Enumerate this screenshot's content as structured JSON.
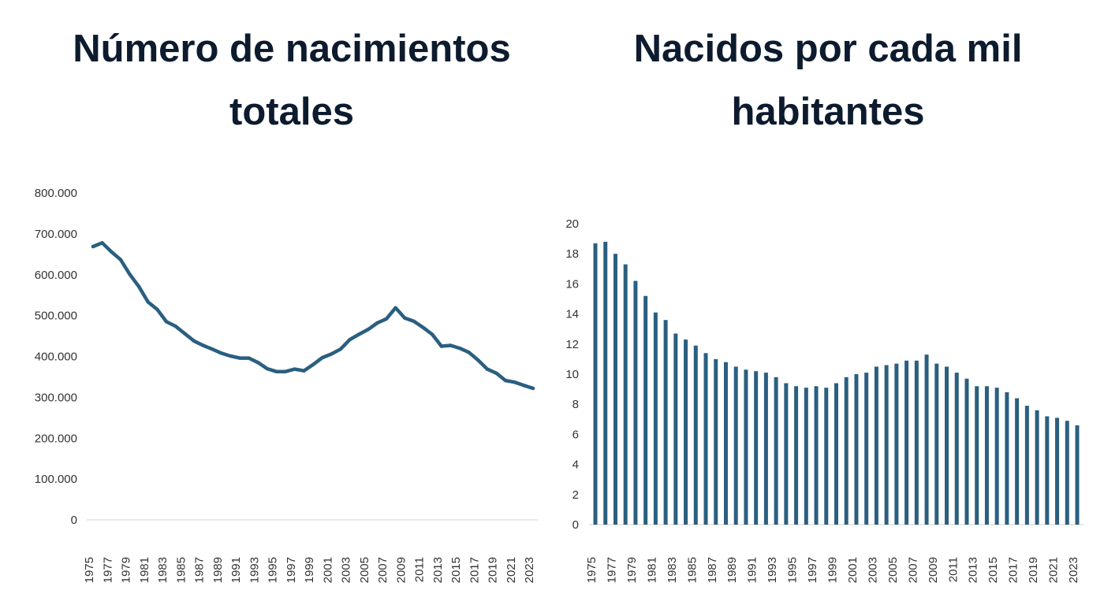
{
  "charts": [
    {
      "type": "line",
      "title": "Número de nacimientos totales",
      "color": "#2a5f80",
      "x": [
        1975,
        1976,
        1977,
        1978,
        1979,
        1980,
        1981,
        1982,
        1983,
        1984,
        1985,
        1986,
        1987,
        1988,
        1989,
        1990,
        1991,
        1992,
        1993,
        1994,
        1995,
        1996,
        1997,
        1998,
        1999,
        2000,
        2001,
        2002,
        2003,
        2004,
        2005,
        2006,
        2007,
        2008,
        2009,
        2010,
        2011,
        2012,
        2013,
        2014,
        2015,
        2016,
        2017,
        2018,
        2019,
        2020,
        2021,
        2022,
        2023
      ],
      "x_tick_labels": [
        "1975",
        "1977",
        "1979",
        "1981",
        "1983",
        "1985",
        "1987",
        "1989",
        "1991",
        "1993",
        "1995",
        "1997",
        "1999",
        "2001",
        "2003",
        "2005",
        "2007",
        "2009",
        "2011",
        "2013",
        "2015",
        "2017",
        "2019",
        "2021",
        "2023"
      ],
      "y_tick_labels": [
        "0",
        "100.000",
        "200.000",
        "300.000",
        "400.000",
        "500.000",
        "600.000",
        "700.000",
        "800.000"
      ],
      "ylim": [
        0,
        800000
      ],
      "values": [
        669000,
        678000,
        656000,
        637000,
        601000,
        571000,
        533000,
        515000,
        485000,
        474000,
        456000,
        438000,
        427000,
        418000,
        408000,
        401000,
        396000,
        396000,
        385000,
        370000,
        363000,
        363000,
        369000,
        365000,
        380000,
        397000,
        406000,
        418000,
        441000,
        454000,
        466000,
        482000,
        492000,
        519000,
        494000,
        486000,
        471000,
        454000,
        425000,
        427000,
        420000,
        410000,
        391000,
        369000,
        359000,
        341000,
        337000,
        329000,
        322000
      ]
    },
    {
      "type": "bar",
      "title": "Nacidos por cada mil habitantes",
      "color": "#2a5f80",
      "x": [
        1975,
        1976,
        1977,
        1978,
        1979,
        1980,
        1981,
        1982,
        1983,
        1984,
        1985,
        1986,
        1987,
        1988,
        1989,
        1990,
        1991,
        1992,
        1993,
        1994,
        1995,
        1996,
        1997,
        1998,
        1999,
        2000,
        2001,
        2002,
        2003,
        2004,
        2005,
        2006,
        2007,
        2008,
        2009,
        2010,
        2011,
        2012,
        2013,
        2014,
        2015,
        2016,
        2017,
        2018,
        2019,
        2020,
        2021,
        2022,
        2023
      ],
      "x_tick_labels": [
        "1975",
        "1977",
        "1979",
        "1981",
        "1983",
        "1985",
        "1987",
        "1989",
        "1991",
        "1993",
        "1995",
        "1997",
        "1999",
        "2001",
        "2003",
        "2005",
        "2007",
        "2009",
        "2011",
        "2013",
        "2015",
        "2017",
        "2019",
        "2021",
        "2023"
      ],
      "y_tick_labels": [
        "0",
        "2",
        "4",
        "6",
        "8",
        "10",
        "12",
        "14",
        "16",
        "18",
        "20"
      ],
      "ylim": [
        0,
        20
      ],
      "values": [
        18.7,
        18.8,
        18.0,
        17.3,
        16.2,
        15.2,
        14.1,
        13.6,
        12.7,
        12.3,
        11.9,
        11.4,
        11.0,
        10.8,
        10.5,
        10.3,
        10.2,
        10.1,
        9.8,
        9.4,
        9.2,
        9.1,
        9.2,
        9.1,
        9.4,
        9.8,
        10.0,
        10.1,
        10.5,
        10.6,
        10.7,
        10.9,
        10.9,
        11.3,
        10.7,
        10.5,
        10.1,
        9.7,
        9.2,
        9.2,
        9.1,
        8.8,
        8.4,
        7.9,
        7.6,
        7.2,
        7.1,
        6.9,
        6.6
      ]
    }
  ]
}
